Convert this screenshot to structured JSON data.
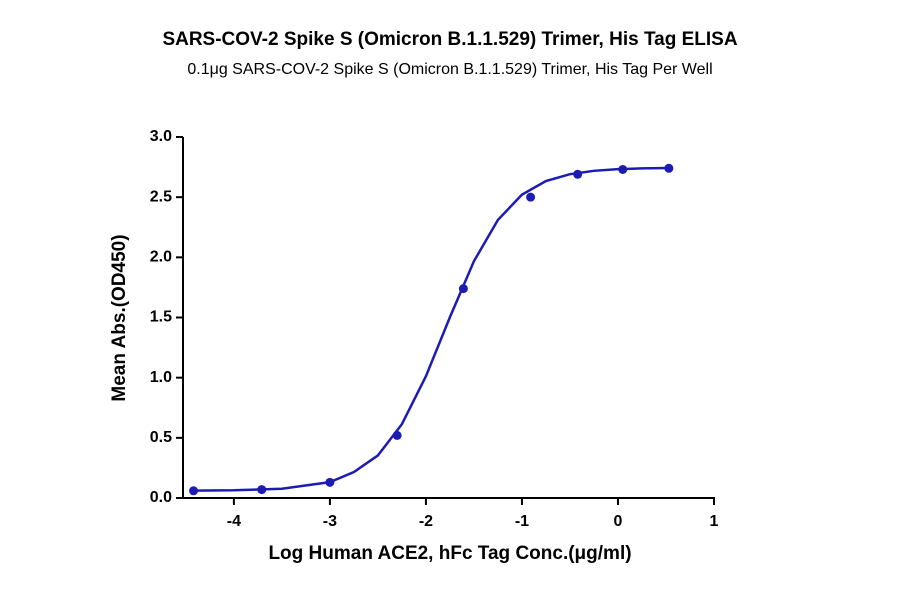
{
  "chart_data": {
    "type": "line",
    "title": "SARS-COV-2 Spike S (Omicron B.1.1.529) Trimer, His Tag ELISA",
    "subtitle": "0.1μg SARS-COV-2 Spike S (Omicron B.1.1.529) Trimer, His Tag Per Well",
    "x_label": "Log Human ACE2, hFc Tag Conc.(μg/ml)",
    "y_label": "Mean Abs.(OD450)",
    "xlim": [
      -4.53,
      1
    ],
    "ylim": [
      0,
      3
    ],
    "xticks": [
      -4,
      -3,
      -2,
      -1,
      0,
      1
    ],
    "yticks": [
      {
        "value": 0,
        "label": "0.0"
      },
      0.5,
      {
        "value": 1,
        "label": "1.0"
      },
      1.5,
      {
        "value": 2,
        "label": "2.0"
      },
      2.5,
      {
        "value": 3,
        "label": "3.0"
      }
    ],
    "series": [
      {
        "style": "markers",
        "color": "#1c1cb4",
        "x": [
          -4.42,
          -3.71,
          -3.0,
          -2.3,
          -1.61,
          -0.91,
          -0.42,
          0.05,
          0.53
        ],
        "values": [
          0.06,
          0.07,
          0.13,
          0.52,
          1.74,
          2.5,
          2.69,
          2.73,
          2.74
        ]
      },
      {
        "style": "line",
        "color": "#1c1cb4",
        "x": [
          -4.42,
          -4,
          -3.5,
          -3,
          -2.75,
          -2.5,
          -2.25,
          -2,
          -1.75,
          -1.5,
          -1.25,
          -1,
          -0.75,
          -0.5,
          -0.25,
          0,
          0.25,
          0.53
        ],
        "values": [
          0.061,
          0.064,
          0.077,
          0.132,
          0.216,
          0.354,
          0.614,
          1.012,
          1.503,
          1.968,
          2.311,
          2.521,
          2.634,
          2.691,
          2.719,
          2.733,
          2.739,
          2.742
        ]
      }
    ]
  }
}
